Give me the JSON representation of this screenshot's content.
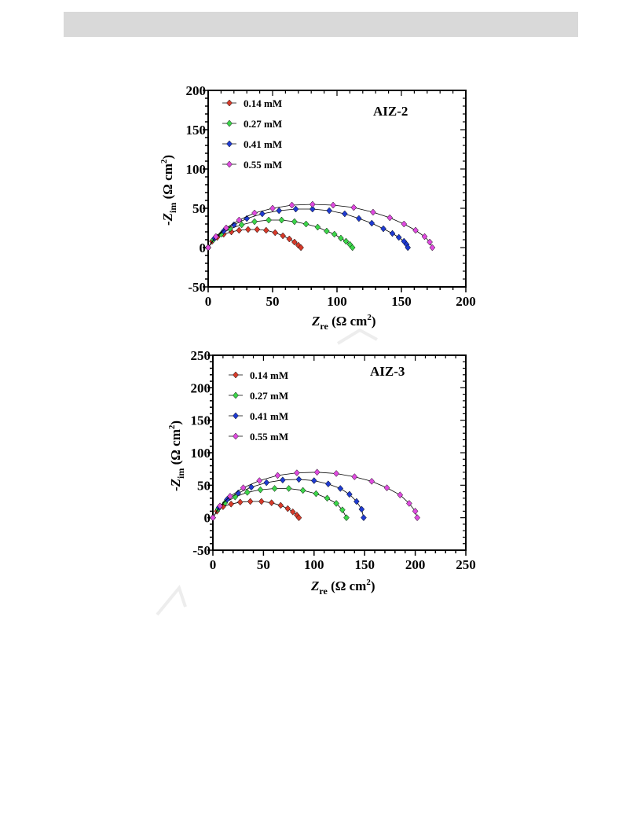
{
  "colors": {
    "header_bar": "#d9d9d9",
    "series": [
      "#d63a2a",
      "#3cd54a",
      "#1f3bd1",
      "#e04be0"
    ]
  },
  "chart_data": [
    {
      "type": "scatter",
      "title": "AIZ-2",
      "xlabel": "Zre (Ω cm2)",
      "ylabel": "-Zim (Ω cm2)",
      "xlim": [
        0,
        200
      ],
      "ylim": [
        -50,
        200
      ],
      "x_ticks": [
        "0",
        "50",
        "100",
        "150",
        "200"
      ],
      "y_ticks": [
        "-50",
        "0",
        "50",
        "100",
        "150",
        "200"
      ],
      "grid": false,
      "legend_position": "top-left",
      "series": [
        {
          "name": "0.14 mM",
          "x": [
            0,
            3,
            7,
            12,
            18,
            24,
            31,
            38,
            45,
            52,
            58,
            63,
            67,
            70,
            72
          ],
          "y": [
            0,
            8,
            13,
            17,
            20,
            22,
            23,
            23,
            22,
            19,
            15,
            11,
            7,
            3,
            0
          ]
        },
        {
          "name": "0.27 mM",
          "x": [
            0,
            4,
            10,
            17,
            26,
            36,
            47,
            57,
            67,
            76,
            85,
            92,
            98,
            103,
            107,
            110,
            112
          ],
          "y": [
            0,
            10,
            17,
            24,
            29,
            33,
            35,
            35,
            33,
            30,
            26,
            21,
            17,
            12,
            8,
            4,
            0
          ]
        },
        {
          "name": "0.41 mM",
          "x": [
            0,
            5,
            12,
            20,
            30,
            42,
            55,
            68,
            81,
            94,
            106,
            117,
            127,
            136,
            143,
            148,
            152,
            154,
            155
          ],
          "y": [
            0,
            12,
            21,
            29,
            37,
            43,
            47,
            49,
            49,
            47,
            43,
            37,
            31,
            24,
            18,
            13,
            8,
            4,
            0
          ]
        },
        {
          "name": "0.55 mM",
          "x": [
            0,
            6,
            14,
            24,
            36,
            50,
            65,
            81,
            97,
            113,
            128,
            141,
            152,
            161,
            168,
            172,
            174
          ],
          "y": [
            0,
            14,
            25,
            35,
            44,
            50,
            54,
            55,
            54,
            51,
            45,
            38,
            30,
            22,
            14,
            7,
            0
          ]
        }
      ]
    },
    {
      "type": "scatter",
      "title": "AIZ-3",
      "xlabel": "Zre (Ω cm2)",
      "ylabel": "-Zim (Ω cm2)",
      "xlim": [
        0,
        250
      ],
      "ylim": [
        -50,
        250
      ],
      "x_ticks": [
        "0",
        "50",
        "100",
        "150",
        "200",
        "250"
      ],
      "y_ticks": [
        "-50",
        "0",
        "50",
        "100",
        "150",
        "200",
        "250"
      ],
      "grid": false,
      "legend_position": "top-left",
      "series": [
        {
          "name": "0.14 mM",
          "x": [
            0,
            4,
            10,
            18,
            27,
            37,
            48,
            58,
            67,
            74,
            79,
            83,
            85
          ],
          "y": [
            0,
            10,
            17,
            21,
            24,
            25,
            25,
            23,
            19,
            14,
            9,
            4,
            0
          ]
        },
        {
          "name": "0.27 mM",
          "x": [
            0,
            5,
            12,
            22,
            34,
            47,
            61,
            75,
            89,
            102,
            113,
            122,
            128,
            132
          ],
          "y": [
            0,
            13,
            23,
            32,
            39,
            43,
            45,
            45,
            42,
            37,
            30,
            22,
            12,
            0
          ]
        },
        {
          "name": "0.41 mM",
          "x": [
            0,
            6,
            14,
            25,
            38,
            53,
            69,
            85,
            100,
            114,
            126,
            135,
            142,
            147,
            149
          ],
          "y": [
            0,
            16,
            28,
            38,
            47,
            54,
            58,
            59,
            57,
            52,
            45,
            36,
            25,
            13,
            0
          ]
        },
        {
          "name": "0.55 mM",
          "x": [
            0,
            7,
            17,
            30,
            46,
            64,
            83,
            103,
            122,
            140,
            157,
            172,
            185,
            194,
            200,
            202
          ],
          "y": [
            0,
            18,
            33,
            46,
            57,
            65,
            69,
            70,
            68,
            63,
            56,
            46,
            35,
            22,
            10,
            0
          ]
        }
      ]
    }
  ]
}
